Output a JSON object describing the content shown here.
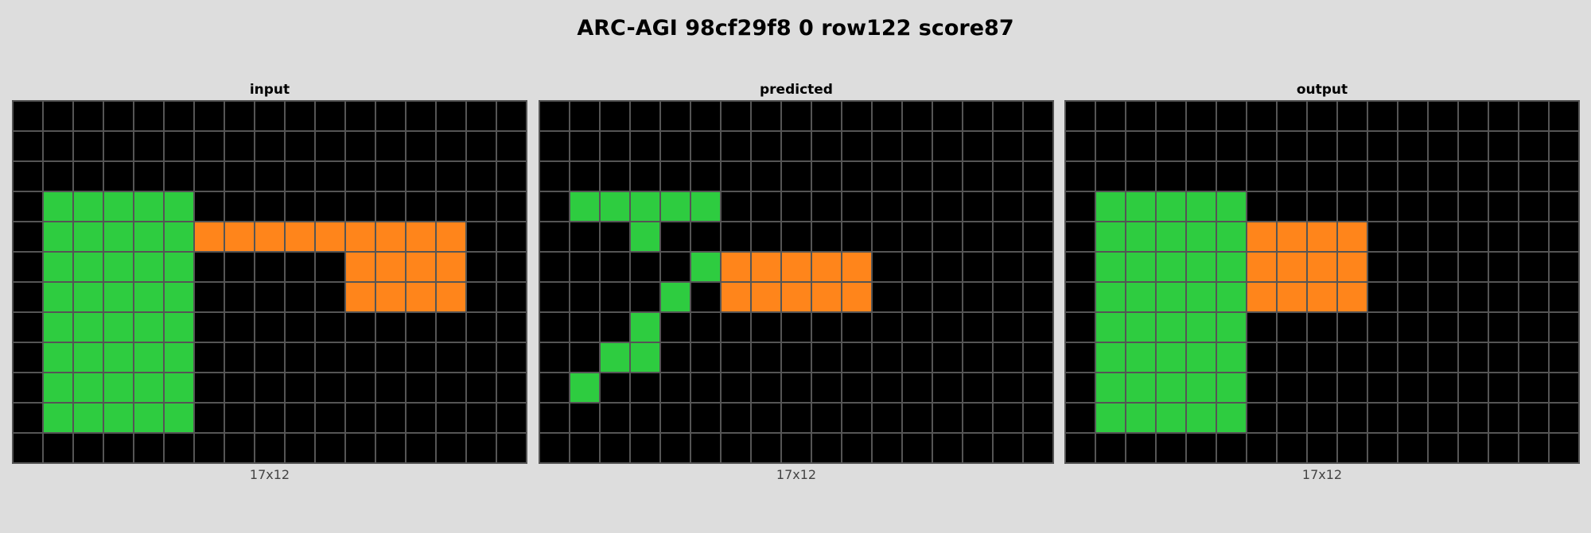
{
  "title": "ARC-AGI 98cf29f8 0 row122 score87",
  "palette": {
    "0": "#000000",
    "3": "#2ecc40",
    "7": "#ff851b"
  },
  "panels": [
    {
      "name": "input",
      "title": "input",
      "size_label": "17x12",
      "grid": [
        [
          0,
          0,
          0,
          0,
          0,
          0,
          0,
          0,
          0,
          0,
          0,
          0,
          0,
          0,
          0,
          0,
          0
        ],
        [
          0,
          0,
          0,
          0,
          0,
          0,
          0,
          0,
          0,
          0,
          0,
          0,
          0,
          0,
          0,
          0,
          0
        ],
        [
          0,
          0,
          0,
          0,
          0,
          0,
          0,
          0,
          0,
          0,
          0,
          0,
          0,
          0,
          0,
          0,
          0
        ],
        [
          0,
          3,
          3,
          3,
          3,
          3,
          0,
          0,
          0,
          0,
          0,
          0,
          0,
          0,
          0,
          0,
          0
        ],
        [
          0,
          3,
          3,
          3,
          3,
          3,
          7,
          7,
          7,
          7,
          7,
          7,
          7,
          7,
          7,
          0,
          0
        ],
        [
          0,
          3,
          3,
          3,
          3,
          3,
          0,
          0,
          0,
          0,
          0,
          7,
          7,
          7,
          7,
          0,
          0
        ],
        [
          0,
          3,
          3,
          3,
          3,
          3,
          0,
          0,
          0,
          0,
          0,
          7,
          7,
          7,
          7,
          0,
          0
        ],
        [
          0,
          3,
          3,
          3,
          3,
          3,
          0,
          0,
          0,
          0,
          0,
          0,
          0,
          0,
          0,
          0,
          0
        ],
        [
          0,
          3,
          3,
          3,
          3,
          3,
          0,
          0,
          0,
          0,
          0,
          0,
          0,
          0,
          0,
          0,
          0
        ],
        [
          0,
          3,
          3,
          3,
          3,
          3,
          0,
          0,
          0,
          0,
          0,
          0,
          0,
          0,
          0,
          0,
          0
        ],
        [
          0,
          3,
          3,
          3,
          3,
          3,
          0,
          0,
          0,
          0,
          0,
          0,
          0,
          0,
          0,
          0,
          0
        ],
        [
          0,
          0,
          0,
          0,
          0,
          0,
          0,
          0,
          0,
          0,
          0,
          0,
          0,
          0,
          0,
          0,
          0
        ]
      ]
    },
    {
      "name": "predicted",
      "title": "predicted",
      "size_label": "17x12",
      "grid": [
        [
          0,
          0,
          0,
          0,
          0,
          0,
          0,
          0,
          0,
          0,
          0,
          0,
          0,
          0,
          0,
          0,
          0
        ],
        [
          0,
          0,
          0,
          0,
          0,
          0,
          0,
          0,
          0,
          0,
          0,
          0,
          0,
          0,
          0,
          0,
          0
        ],
        [
          0,
          0,
          0,
          0,
          0,
          0,
          0,
          0,
          0,
          0,
          0,
          0,
          0,
          0,
          0,
          0,
          0
        ],
        [
          0,
          3,
          3,
          3,
          3,
          3,
          0,
          0,
          0,
          0,
          0,
          0,
          0,
          0,
          0,
          0,
          0
        ],
        [
          0,
          0,
          0,
          3,
          0,
          0,
          0,
          0,
          0,
          0,
          0,
          0,
          0,
          0,
          0,
          0,
          0
        ],
        [
          0,
          0,
          0,
          0,
          0,
          3,
          7,
          7,
          7,
          7,
          7,
          0,
          0,
          0,
          0,
          0,
          0
        ],
        [
          0,
          0,
          0,
          0,
          3,
          0,
          7,
          7,
          7,
          7,
          7,
          0,
          0,
          0,
          0,
          0,
          0
        ],
        [
          0,
          0,
          0,
          3,
          0,
          0,
          0,
          0,
          0,
          0,
          0,
          0,
          0,
          0,
          0,
          0,
          0
        ],
        [
          0,
          0,
          3,
          3,
          0,
          0,
          0,
          0,
          0,
          0,
          0,
          0,
          0,
          0,
          0,
          0,
          0
        ],
        [
          0,
          3,
          0,
          0,
          0,
          0,
          0,
          0,
          0,
          0,
          0,
          0,
          0,
          0,
          0,
          0,
          0
        ],
        [
          0,
          0,
          0,
          0,
          0,
          0,
          0,
          0,
          0,
          0,
          0,
          0,
          0,
          0,
          0,
          0,
          0
        ],
        [
          0,
          0,
          0,
          0,
          0,
          0,
          0,
          0,
          0,
          0,
          0,
          0,
          0,
          0,
          0,
          0,
          0
        ]
      ]
    },
    {
      "name": "output",
      "title": "output",
      "size_label": "17x12",
      "grid": [
        [
          0,
          0,
          0,
          0,
          0,
          0,
          0,
          0,
          0,
          0,
          0,
          0,
          0,
          0,
          0,
          0,
          0
        ],
        [
          0,
          0,
          0,
          0,
          0,
          0,
          0,
          0,
          0,
          0,
          0,
          0,
          0,
          0,
          0,
          0,
          0
        ],
        [
          0,
          0,
          0,
          0,
          0,
          0,
          0,
          0,
          0,
          0,
          0,
          0,
          0,
          0,
          0,
          0,
          0
        ],
        [
          0,
          3,
          3,
          3,
          3,
          3,
          0,
          0,
          0,
          0,
          0,
          0,
          0,
          0,
          0,
          0,
          0
        ],
        [
          0,
          3,
          3,
          3,
          3,
          3,
          7,
          7,
          7,
          7,
          0,
          0,
          0,
          0,
          0,
          0,
          0
        ],
        [
          0,
          3,
          3,
          3,
          3,
          3,
          7,
          7,
          7,
          7,
          0,
          0,
          0,
          0,
          0,
          0,
          0
        ],
        [
          0,
          3,
          3,
          3,
          3,
          3,
          7,
          7,
          7,
          7,
          0,
          0,
          0,
          0,
          0,
          0,
          0
        ],
        [
          0,
          3,
          3,
          3,
          3,
          3,
          0,
          0,
          0,
          0,
          0,
          0,
          0,
          0,
          0,
          0,
          0
        ],
        [
          0,
          3,
          3,
          3,
          3,
          3,
          0,
          0,
          0,
          0,
          0,
          0,
          0,
          0,
          0,
          0,
          0
        ],
        [
          0,
          3,
          3,
          3,
          3,
          3,
          0,
          0,
          0,
          0,
          0,
          0,
          0,
          0,
          0,
          0,
          0
        ],
        [
          0,
          3,
          3,
          3,
          3,
          3,
          0,
          0,
          0,
          0,
          0,
          0,
          0,
          0,
          0,
          0,
          0
        ],
        [
          0,
          0,
          0,
          0,
          0,
          0,
          0,
          0,
          0,
          0,
          0,
          0,
          0,
          0,
          0,
          0,
          0
        ]
      ]
    }
  ]
}
